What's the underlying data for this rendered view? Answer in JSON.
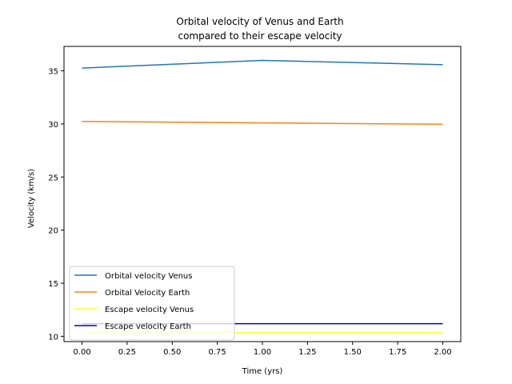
{
  "chart_data": {
    "type": "line",
    "title": [
      "Orbital velocity of Venus and Earth",
      " compared to their escape velocity"
    ],
    "xlabel": "Time (yrs)",
    "ylabel": "Velocity (km/s)",
    "x": [
      0,
      1,
      2
    ],
    "xlim": [
      -0.1,
      2.1
    ],
    "ylim": [
      9.5,
      37.3
    ],
    "xticks": [
      0,
      0.25,
      0.5,
      0.75,
      1,
      1.25,
      1.5,
      1.75,
      2
    ],
    "xtick_labels": [
      "0.00",
      "0.25",
      "0.50",
      "0.75",
      "1.00",
      "1.25",
      "1.50",
      "1.75",
      "2.00"
    ],
    "yticks": [
      10,
      15,
      20,
      25,
      30,
      35
    ],
    "ytick_labels": [
      "10",
      "15",
      "20",
      "25",
      "30",
      "35"
    ],
    "grid": false,
    "legend_position": "lower-left",
    "series": [
      {
        "name": "Orbital velocity Venus",
        "color": "#1f77b4",
        "values": [
          35.26,
          35.98,
          35.58
        ]
      },
      {
        "name": "Orbital Velocity Earth",
        "color": "#ff7f0e",
        "values": [
          30.23,
          30.1,
          29.97
        ]
      },
      {
        "name": "Escape velocity Venus",
        "color": "#ffff33",
        "values": [
          10.36,
          10.36,
          10.36
        ]
      },
      {
        "name": "Escape velocity Earth",
        "color": "#0000cc",
        "values": [
          11.19,
          11.19,
          11.19
        ]
      }
    ]
  }
}
